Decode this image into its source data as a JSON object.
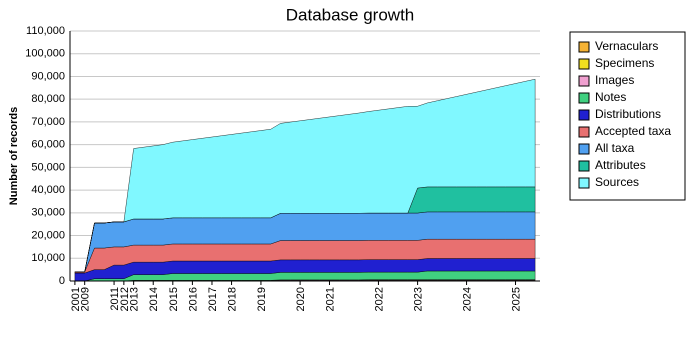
{
  "chart_data": {
    "type": "area",
    "stacked": true,
    "title": "Database growth",
    "y_label": "Number of records",
    "categories": [
      "2001",
      "2009",
      null,
      null,
      "2011",
      "2012",
      "2013",
      null,
      "2014",
      null,
      "2015",
      null,
      "2016",
      null,
      "2017",
      null,
      "2018",
      null,
      null,
      "2019",
      null,
      null,
      null,
      "2020",
      null,
      null,
      "2021",
      null,
      null,
      null,
      null,
      "2022",
      null,
      null,
      null,
      "2023",
      null,
      null,
      null,
      null,
      "2024",
      null,
      null,
      null,
      null,
      "2025",
      null,
      null
    ],
    "ylim": [
      0,
      110000
    ],
    "yticks": [
      0,
      {
        "value": 10000,
        "label": "10,000"
      },
      {
        "value": 20000,
        "label": "20,000"
      },
      {
        "value": 30000,
        "label": "30,000"
      },
      {
        "value": 40000,
        "label": "40,000"
      },
      {
        "value": 50000,
        "label": "50,000"
      },
      {
        "value": 60000,
        "label": "60,000"
      },
      {
        "value": 70000,
        "label": "70,000"
      },
      {
        "value": 80000,
        "label": "80,000"
      },
      {
        "value": 90000,
        "label": "90,000"
      },
      {
        "value": 100000,
        "label": "100,000"
      },
      {
        "value": 110000,
        "label": "110,000"
      }
    ],
    "grid": true,
    "legend": "right",
    "series": [
      {
        "name": "Vernaculars",
        "color": "#f5b335",
        "values": [
          0,
          0,
          0,
          0,
          0,
          0,
          300,
          300,
          300,
          300,
          300,
          300,
          300,
          300,
          300,
          300,
          300,
          300,
          300,
          300,
          300,
          300,
          300,
          300,
          300,
          300,
          300,
          300,
          300,
          300,
          300,
          300,
          300,
          300,
          300,
          300,
          300,
          300,
          300,
          300,
          300,
          300,
          300,
          300,
          300,
          300,
          300,
          300
        ]
      },
      {
        "name": "Specimens",
        "color": "#f0e020",
        "values": [
          0,
          0,
          0,
          0,
          0,
          0,
          0,
          0,
          0,
          0,
          0,
          0,
          0,
          0,
          0,
          0,
          0,
          0,
          0,
          0,
          0,
          0,
          0,
          0,
          0,
          0,
          0,
          0,
          0,
          0,
          100,
          100,
          100,
          100,
          100,
          100,
          100,
          100,
          100,
          100,
          100,
          100,
          100,
          100,
          100,
          100,
          100,
          100
        ]
      },
      {
        "name": "Images",
        "color": "#f0a0d0",
        "values": [
          0,
          0,
          0,
          0,
          0,
          0,
          0,
          0,
          0,
          0,
          0,
          0,
          0,
          0,
          0,
          0,
          0,
          0,
          0,
          0,
          0,
          200,
          200,
          200,
          200,
          200,
          200,
          200,
          200,
          200,
          200,
          200,
          200,
          200,
          200,
          200,
          200,
          200,
          200,
          200,
          200,
          200,
          200,
          200,
          200,
          200,
          200,
          200
        ]
      },
      {
        "name": "Notes",
        "color": "#40d080",
        "values": [
          0,
          0,
          1000,
          1000,
          1000,
          1000,
          2500,
          2500,
          2500,
          2500,
          3000,
          3000,
          3000,
          3000,
          3000,
          3000,
          3000,
          3000,
          3000,
          3000,
          3000,
          3300,
          3300,
          3300,
          3300,
          3300,
          3300,
          3300,
          3300,
          3300,
          3300,
          3300,
          3300,
          3300,
          3300,
          3300,
          3800,
          3800,
          3800,
          3800,
          3800,
          3800,
          3800,
          3800,
          3800,
          3800,
          3800,
          3800
        ]
      },
      {
        "name": "Distributions",
        "color": "#2020d0",
        "values": [
          3500,
          3500,
          4000,
          4000,
          6000,
          6000,
          5500,
          5500,
          5500,
          5500,
          5500,
          5500,
          5500,
          5500,
          5500,
          5500,
          5500,
          5500,
          5500,
          5500,
          5500,
          5500,
          5500,
          5500,
          5500,
          5500,
          5500,
          5500,
          5500,
          5500,
          5500,
          5500,
          5500,
          5500,
          5500,
          5500,
          5500,
          5500,
          5500,
          5500,
          5500,
          5500,
          5500,
          5500,
          5500,
          5500,
          5500,
          5500
        ]
      },
      {
        "name": "Accepted taxa",
        "color": "#e87070",
        "values": [
          500,
          500,
          9500,
          9500,
          8000,
          8000,
          7500,
          7500,
          7500,
          7500,
          7500,
          7500,
          7500,
          7500,
          7500,
          7500,
          7500,
          7500,
          7500,
          7500,
          7500,
          8500,
          8500,
          8500,
          8500,
          8500,
          8500,
          8500,
          8500,
          8500,
          8500,
          8500,
          8500,
          8500,
          8500,
          8500,
          8500,
          8500,
          8500,
          8500,
          8500,
          8500,
          8500,
          8500,
          8500,
          8500,
          8500,
          8500
        ]
      },
      {
        "name": "All taxa",
        "color": "#50a0f0",
        "values": [
          0,
          0,
          11000,
          11000,
          11000,
          11000,
          11500,
          11500,
          11500,
          11500,
          11500,
          11500,
          11500,
          11500,
          11500,
          11500,
          11500,
          11500,
          11500,
          11500,
          11500,
          12000,
          12000,
          12000,
          12000,
          12000,
          12000,
          12000,
          12000,
          12000,
          12000,
          12000,
          12000,
          12000,
          12000,
          12000,
          12000,
          12000,
          12000,
          12000,
          12000,
          12000,
          12000,
          12000,
          12000,
          12000,
          12000,
          12000
        ]
      },
      {
        "name": "Attributes",
        "color": "#20c0a0",
        "values": [
          0,
          0,
          0,
          0,
          0,
          0,
          0,
          0,
          0,
          0,
          0,
          0,
          0,
          0,
          0,
          0,
          0,
          0,
          0,
          0,
          0,
          0,
          0,
          0,
          0,
          0,
          0,
          0,
          0,
          0,
          0,
          0,
          0,
          0,
          0,
          11000,
          11000,
          11000,
          11000,
          11000,
          11000,
          11000,
          11000,
          11000,
          11000,
          11000,
          11000,
          11000
        ]
      },
      {
        "name": "Sources",
        "color": "#80f8ff",
        "values": [
          0,
          0,
          0,
          0,
          0,
          0,
          31000,
          31570,
          32140,
          32710,
          33280,
          33850,
          34420,
          34990,
          35560,
          36130,
          36700,
          37270,
          37840,
          38410,
          38980,
          39550,
          40120,
          40690,
          41260,
          41830,
          42400,
          42970,
          43540,
          44110,
          44680,
          45250,
          45820,
          46390,
          46960,
          36000,
          36950,
          37900,
          38850,
          39800,
          40750,
          41700,
          42650,
          43600,
          44550,
          45500,
          46450,
          47400
        ]
      }
    ]
  }
}
